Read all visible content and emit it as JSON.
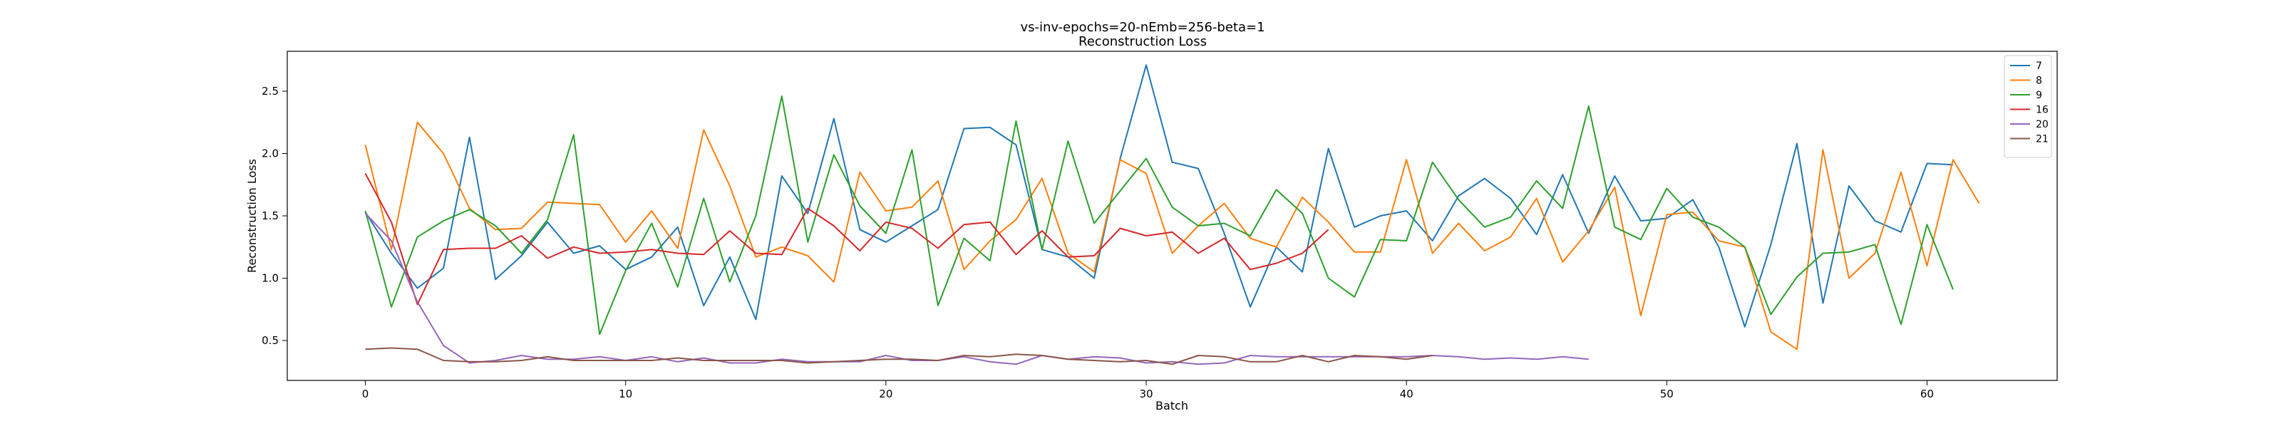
{
  "chart_data": {
    "type": "line",
    "title": "vs-inv-epochs=20-nEmb=256-beta=1",
    "subtitle": "Reconstruction Loss",
    "xlabel": "Batch",
    "ylabel": "Reconstruction Loss",
    "xlim": [
      -3,
      65
    ],
    "ylim": [
      0.18,
      2.82
    ],
    "xticks": [
      0,
      10,
      20,
      30,
      40,
      50,
      60
    ],
    "yticks": [
      0.5,
      1.0,
      1.5,
      2.0,
      2.5
    ],
    "legend_position": "top-right",
    "grid": false,
    "series": [
      {
        "name": "7",
        "color": "#1f77b4",
        "values": [
          1.53,
          1.2,
          0.92,
          1.08,
          2.13,
          0.99,
          1.18,
          1.45,
          1.2,
          1.26,
          1.07,
          1.17,
          1.41,
          0.78,
          1.17,
          0.67,
          1.82,
          1.52,
          2.28,
          1.39,
          1.29,
          1.42,
          1.55,
          2.2,
          2.21,
          2.07,
          1.23,
          1.17,
          1.0,
          1.96,
          2.71,
          1.93,
          1.88,
          1.36,
          0.77,
          1.25,
          1.05,
          2.04,
          1.41,
          1.5,
          1.54,
          1.3,
          1.66,
          1.8,
          1.64,
          1.35,
          1.83,
          1.36,
          1.82,
          1.46,
          1.48,
          1.63,
          1.25,
          0.61,
          1.27,
          2.08,
          0.8,
          1.74,
          1.46,
          1.37,
          1.92,
          1.91
        ]
      },
      {
        "name": "8",
        "color": "#ff7f0e",
        "values": [
          2.07,
          1.23,
          2.25,
          2.0,
          1.56,
          1.39,
          1.4,
          1.61,
          1.6,
          1.59,
          1.29,
          1.54,
          1.24,
          2.19,
          1.74,
          1.17,
          1.25,
          1.18,
          0.97,
          1.85,
          1.54,
          1.57,
          1.78,
          1.07,
          1.3,
          1.47,
          1.8,
          1.2,
          1.05,
          1.95,
          1.84,
          1.2,
          1.42,
          1.6,
          1.32,
          1.25,
          1.65,
          1.45,
          1.21,
          1.21,
          1.95,
          1.2,
          1.44,
          1.22,
          1.33,
          1.64,
          1.13,
          1.38,
          1.73,
          0.7,
          1.51,
          1.53,
          1.3,
          1.25,
          0.57,
          0.43,
          2.03,
          1.0,
          1.2,
          1.85,
          1.1,
          1.95,
          1.6
        ]
      },
      {
        "name": "9",
        "color": "#2ca02c",
        "values": [
          1.54,
          0.77,
          1.33,
          1.46,
          1.55,
          1.42,
          1.2,
          1.47,
          2.15,
          0.55,
          1.06,
          1.44,
          0.93,
          1.64,
          0.97,
          1.5,
          2.46,
          1.29,
          1.99,
          1.58,
          1.36,
          2.03,
          0.78,
          1.32,
          1.14,
          2.26,
          1.23,
          2.1,
          1.44,
          1.7,
          1.96,
          1.57,
          1.42,
          1.44,
          1.34,
          1.71,
          1.52,
          1.0,
          0.85,
          1.31,
          1.3,
          1.93,
          1.63,
          1.41,
          1.49,
          1.78,
          1.56,
          2.38,
          1.41,
          1.31,
          1.72,
          1.49,
          1.41,
          1.25,
          0.71,
          1.01,
          1.2,
          1.21,
          1.27,
          0.63,
          1.43,
          0.91
        ]
      },
      {
        "name": "16",
        "color": "#d62728",
        "values": [
          1.84,
          1.45,
          0.79,
          1.23,
          1.24,
          1.24,
          1.34,
          1.16,
          1.25,
          1.2,
          1.21,
          1.23,
          1.2,
          1.19,
          1.38,
          1.2,
          1.19,
          1.56,
          1.42,
          1.22,
          1.45,
          1.4,
          1.24,
          1.43,
          1.45,
          1.19,
          1.38,
          1.17,
          1.18,
          1.4,
          1.34,
          1.37,
          1.2,
          1.32,
          1.07,
          1.12,
          1.2,
          1.39
        ]
      },
      {
        "name": "20",
        "color": "#9467bd",
        "values": [
          1.52,
          1.3,
          0.81,
          0.46,
          0.32,
          0.34,
          0.38,
          0.35,
          0.35,
          0.37,
          0.34,
          0.37,
          0.33,
          0.36,
          0.32,
          0.32,
          0.35,
          0.33,
          0.33,
          0.33,
          0.38,
          0.34,
          0.34,
          0.37,
          0.33,
          0.31,
          0.38,
          0.35,
          0.37,
          0.36,
          0.32,
          0.33,
          0.31,
          0.32,
          0.38,
          0.37,
          0.37,
          0.37,
          0.37,
          0.37,
          0.37,
          0.38,
          0.37,
          0.35,
          0.36,
          0.35,
          0.37,
          0.35
        ]
      },
      {
        "name": "21",
        "color": "#8c564b",
        "values": [
          0.43,
          0.44,
          0.43,
          0.34,
          0.33,
          0.33,
          0.34,
          0.37,
          0.34,
          0.34,
          0.34,
          0.34,
          0.36,
          0.34,
          0.34,
          0.34,
          0.34,
          0.32,
          0.33,
          0.34,
          0.35,
          0.35,
          0.34,
          0.38,
          0.37,
          0.39,
          0.38,
          0.35,
          0.34,
          0.33,
          0.34,
          0.31,
          0.38,
          0.37,
          0.33,
          0.33,
          0.38,
          0.33,
          0.38,
          0.37,
          0.35,
          0.38
        ]
      }
    ]
  }
}
